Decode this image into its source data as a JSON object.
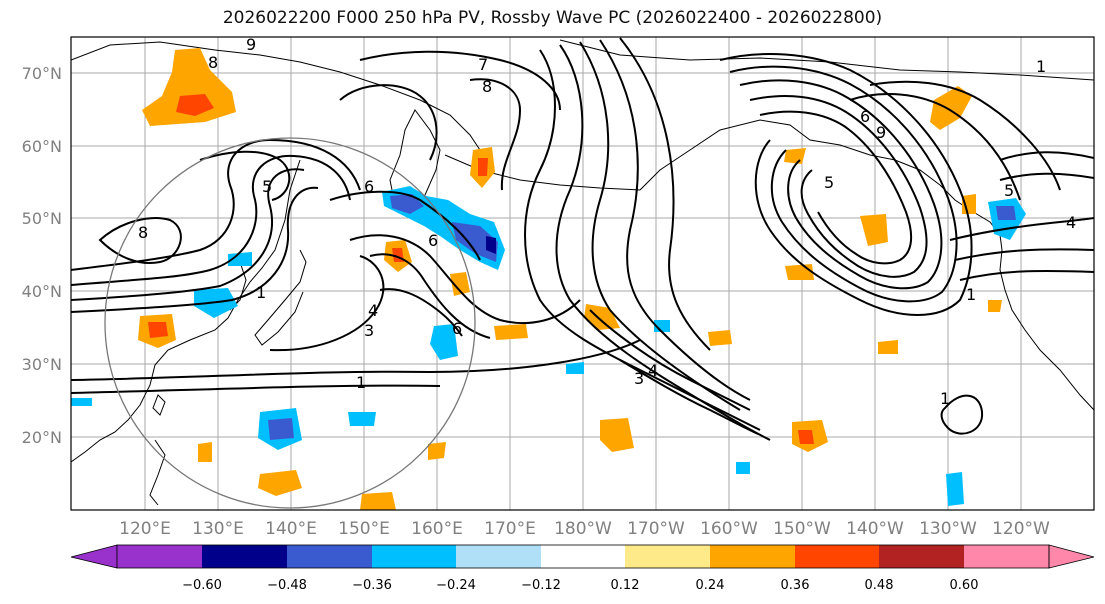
{
  "title": "2026022200 F000 250 hPa PV, Rossby Wave PC (2026022400 - 2026022800)",
  "lat_labels": [
    "70°N",
    "60°N",
    "50°N",
    "40°N",
    "30°N",
    "20°N"
  ],
  "lon_labels": [
    "120°E",
    "130°E",
    "140°E",
    "150°E",
    "160°E",
    "170°E",
    "180°W",
    "170°W",
    "160°W",
    "150°W",
    "140°W",
    "130°W",
    "120°W"
  ],
  "contour_labels": [
    "9",
    "8",
    "7",
    "8",
    "6",
    "6",
    "5",
    "4",
    "3",
    "6",
    "1",
    "1",
    "8",
    "5",
    "9",
    "6",
    "1",
    "5",
    "4",
    "1",
    "4",
    "3",
    "1"
  ],
  "colorbar": {
    "tick_labels": [
      "−0.60",
      "−0.48",
      "−0.36",
      "−0.24",
      "−0.12",
      "0.12",
      "0.24",
      "0.36",
      "0.48",
      "0.60"
    ],
    "colors": [
      "#9932cc",
      "#00008b",
      "#3a5bd0",
      "#00bfff",
      "#b0e0f8",
      "#ffffff",
      "#ffea8a",
      "#ffa500",
      "#ff4500",
      "#b22222",
      "#ff88aa"
    ]
  }
}
